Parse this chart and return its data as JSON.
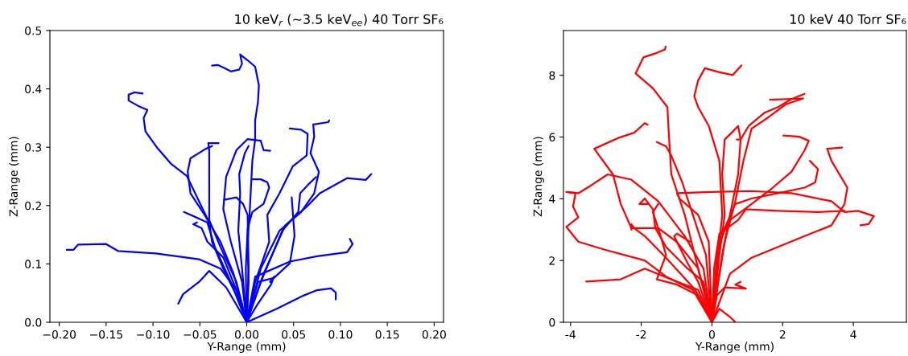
{
  "chart_data": [
    {
      "type": "line",
      "title": "10 keV$_{r}$ (~3.5 keV$_{ee}$) 40 Torr SF₆",
      "xlabel": "Y-Range (mm)",
      "ylabel": "Z-Range (mm)",
      "xlim": [
        -0.21,
        0.21
      ],
      "ylim": [
        0,
        0.5
      ],
      "xticks": [
        {
          "value": -0.2,
          "label": "−0.20"
        },
        {
          "value": -0.15,
          "label": "−0.15"
        },
        {
          "value": -0.1,
          "label": "−0.10"
        },
        {
          "value": -0.05,
          "label": "−0.05"
        },
        {
          "value": 0,
          "label": "0.00"
        },
        {
          "value": 0.05,
          "label": "0.05"
        },
        {
          "value": 0.1,
          "label": "0.10"
        },
        {
          "value": 0.15,
          "label": "0.15"
        },
        {
          "value": 0.2,
          "label": "0.20"
        }
      ],
      "yticks": [
        {
          "value": 0,
          "label": "0.0"
        },
        {
          "value": 0.1,
          "label": "0.1"
        },
        {
          "value": 0.2,
          "label": "0.2"
        },
        {
          "value": 0.3,
          "label": "0.3"
        },
        {
          "value": 0.4,
          "label": "0.4"
        },
        {
          "value": 0.5,
          "label": "0.5"
        }
      ],
      "series": [
        {
          "color": "#0000ff",
          "x": [
            0,
            0.002,
            0.001,
            0.003,
            0.006,
            0.009,
            0.009,
            0.012,
            0.013,
            0.009,
            0.001,
            -0.007,
            -0.005,
            -0.008,
            -0.017,
            -0.024,
            -0.031,
            -0.037
          ],
          "values": [
            0,
            0.069,
            0.138,
            0.184,
            0.277,
            0.313,
            0.346,
            0.378,
            0.406,
            0.438,
            0.449,
            0.459,
            0.443,
            0.433,
            0.43,
            0.436,
            0.441,
            0.44
          ]
        },
        {
          "color": "#0000ff",
          "x": [
            0,
            -0.011,
            -0.025,
            -0.037,
            -0.04,
            -0.064,
            -0.081,
            -0.096,
            -0.108,
            -0.11,
            -0.106,
            -0.116,
            -0.126,
            -0.126,
            -0.12,
            -0.111
          ],
          "values": [
            0,
            0.046,
            0.092,
            0.138,
            0.171,
            0.251,
            0.272,
            0.3,
            0.327,
            0.35,
            0.364,
            0.371,
            0.38,
            0.39,
            0.394,
            0.392
          ]
        },
        {
          "color": "#0000ff",
          "x": [
            0,
            -0.011,
            -0.028,
            -0.051,
            -0.097,
            -0.137,
            -0.15,
            -0.18,
            -0.185,
            -0.192
          ],
          "values": [
            0,
            0.055,
            0.092,
            0.108,
            0.118,
            0.122,
            0.134,
            0.133,
            0.124,
            0.124
          ]
        },
        {
          "color": "#0000ff",
          "x": [
            0,
            -0.022,
            -0.04,
            -0.051,
            -0.068,
            -0.073
          ],
          "values": [
            0,
            0.06,
            0.088,
            0.069,
            0.048,
            0.032
          ]
        },
        {
          "color": "#0000ff",
          "x": [
            0,
            -0.011,
            -0.028,
            -0.04,
            -0.04,
            -0.04,
            -0.041,
            -0.03
          ],
          "values": [
            0,
            0.069,
            0.129,
            0.175,
            0.24,
            0.295,
            0.307,
            0.307
          ]
        },
        {
          "color": "#0000ff",
          "x": [
            0,
            -0.014,
            -0.028,
            -0.045,
            -0.06,
            -0.063,
            -0.06,
            -0.044,
            -0.037
          ],
          "values": [
            0,
            0.083,
            0.138,
            0.184,
            0.221,
            0.258,
            0.281,
            0.297,
            0.302
          ]
        },
        {
          "color": "#0000ff",
          "x": [
            0,
            -0.017,
            -0.034,
            -0.042,
            -0.057,
            -0.067
          ],
          "values": [
            0,
            0.069,
            0.129,
            0.171,
            0.182,
            0.189
          ]
        },
        {
          "color": "#0000ff",
          "x": [
            0,
            -0.011,
            -0.025,
            -0.042,
            -0.048,
            -0.057,
            -0.053
          ],
          "values": [
            0,
            0.055,
            0.111,
            0.138,
            0.161,
            0.168,
            0.171
          ]
        },
        {
          "color": "#0000ff",
          "x": [
            0,
            -0.005,
            -0.017,
            -0.025,
            -0.022,
            -0.011,
            0.001,
            0.015,
            0.018,
            0.025
          ],
          "values": [
            0,
            0.069,
            0.138,
            0.194,
            0.249,
            0.295,
            0.314,
            0.311,
            0.295,
            0.294
          ]
        },
        {
          "color": "#0000ff",
          "x": [
            0,
            -0.005,
            -0.009,
            -0.007,
            -0.008,
            -0.002,
            0.002
          ],
          "values": [
            0,
            0.092,
            0.157,
            0.221,
            0.254,
            0.29,
            0.302
          ]
        },
        {
          "color": "#0000ff",
          "x": [
            0,
            -0.001,
            0.001,
            0.006,
            0.018,
            0.024,
            0.022,
            0.015,
            0.006
          ],
          "values": [
            0,
            0.092,
            0.161,
            0.189,
            0.203,
            0.231,
            0.24,
            0.245,
            0.245
          ]
        },
        {
          "color": "#0000ff",
          "x": [
            0,
            0.009,
            0.024,
            0.022,
            0.035,
            0.049,
            0.064,
            0.065,
            0.058,
            0.046
          ],
          "values": [
            0,
            0.069,
            0.138,
            0.184,
            0.221,
            0.267,
            0.286,
            0.323,
            0.33,
            0.332
          ]
        },
        {
          "color": "#0000ff",
          "x": [
            0,
            0.015,
            0.035,
            0.058,
            0.072,
            0.077,
            0.068,
            0.072,
            0.071,
            0.087,
            0.088
          ],
          "values": [
            0,
            0.092,
            0.157,
            0.189,
            0.221,
            0.258,
            0.29,
            0.318,
            0.339,
            0.343,
            0.346
          ]
        },
        {
          "color": "#0000ff",
          "x": [
            0,
            0.018,
            0.041,
            0.064,
            0.078,
            0.107,
            0.127,
            0.133
          ],
          "values": [
            0,
            0.083,
            0.166,
            0.198,
            0.221,
            0.247,
            0.244,
            0.254
          ]
        },
        {
          "color": "#0000ff",
          "x": [
            0,
            0.015,
            0.038,
            0.055,
            0.057,
            0.065,
            0.074
          ],
          "values": [
            0,
            0.069,
            0.157,
            0.189,
            0.221,
            0.235,
            0.249
          ]
        },
        {
          "color": "#0000ff",
          "x": [
            0,
            0.012,
            0.029,
            0.046,
            0.051,
            0.048
          ],
          "values": [
            0,
            0.069,
            0.076,
            0.101,
            0.148,
            0.214
          ]
        },
        {
          "color": "#0000ff",
          "x": [
            0,
            0.009,
            0.046,
            0.075,
            0.107,
            0.113,
            0.11
          ],
          "values": [
            0,
            0.078,
            0.104,
            0.113,
            0.12,
            0.134,
            0.143
          ]
        },
        {
          "color": "#0000ff",
          "x": [
            0,
            0.032,
            0.061,
            0.075,
            0.09,
            0.095,
            0.095
          ],
          "values": [
            0,
            0.023,
            0.046,
            0.055,
            0.058,
            0.051,
            0.039
          ]
        },
        {
          "color": "#0000ff",
          "x": [
            0,
            0.012,
            0.026,
            0.029,
            0.025
          ],
          "values": [
            0,
            0.032,
            0.065,
            0.078,
            0.069
          ]
        },
        {
          "color": "#0000ff",
          "x": [
            0,
            0.002,
            0.001,
            -0.004,
            -0.011,
            -0.024
          ],
          "values": [
            0,
            0.092,
            0.184,
            0.203,
            0.214,
            0.21
          ]
        }
      ]
    },
    {
      "type": "line",
      "title": "10 keV 40 Torr SF₆",
      "xlabel": "Y-Range (mm)",
      "ylabel": "Z-Range (mm)",
      "xlim": [
        -4.2,
        5.5
      ],
      "ylim": [
        0,
        9.45
      ],
      "xticks": [
        -4,
        -2,
        0,
        2,
        4
      ],
      "yticks": [
        0,
        2,
        4,
        6,
        8
      ],
      "series": [
        {
          "color": "#ff0000",
          "x": [
            0,
            -0.39,
            -0.77,
            -1.15,
            -1.22,
            -1.26,
            -1.67,
            -2.16,
            -1.94,
            -1.6,
            -1.33,
            -1.31
          ],
          "values": [
            0,
            1.74,
            3.48,
            4.79,
            6.1,
            6.97,
            7.58,
            8.06,
            8.58,
            8.71,
            8.84,
            8.93
          ]
        },
        {
          "color": "#ff0000",
          "x": [
            0,
            0.14,
            0.29,
            0.21,
            -0.09,
            -0.39,
            -0.5,
            -0.39,
            -0.2,
            0.21,
            0.59,
            0.83
          ],
          "values": [
            0,
            1.74,
            3.48,
            5.23,
            6.36,
            6.97,
            7.32,
            7.84,
            8.23,
            8.1,
            8.01,
            8.32
          ]
        },
        {
          "color": "#ff0000",
          "x": [
            0,
            0.29,
            0.51,
            0.74,
            0.81,
            1.04,
            1.49,
            1.87,
            2.25,
            2.62
          ],
          "values": [
            0,
            2.18,
            3.48,
            4.79,
            5.92,
            6.36,
            6.79,
            6.97,
            7.23,
            7.4
          ]
        },
        {
          "color": "#ff0000",
          "x": [
            0,
            0.36,
            0.66,
            0.89,
            1.12,
            1.57,
            2.09,
            2.58,
            1.64
          ],
          "values": [
            0,
            2.61,
            3.92,
            5.23,
            6.27,
            6.62,
            7.06,
            7.25,
            7.21
          ]
        },
        {
          "color": "#ff0000",
          "x": [
            0,
            0.51,
            1.12,
            1.87,
            2.62,
            3.38,
            3.75,
            3.83,
            3.38,
            3.26,
            3.68
          ],
          "values": [
            0,
            1.57,
            2.09,
            2.44,
            2.79,
            3.14,
            3.83,
            4.36,
            5.23,
            5.62,
            5.66
          ]
        },
        {
          "color": "#ff0000",
          "x": [
            0,
            0.14,
            0.36,
            0.66,
            1.12,
            1.87,
            2.62,
            2.92,
            3.0,
            2.77
          ],
          "values": [
            0,
            2.18,
            3.05,
            3.83,
            4.01,
            4.18,
            4.36,
            4.53,
            4.96,
            5.23
          ]
        },
        {
          "color": "#ff0000",
          "x": [
            0,
            -0.09,
            -0.39,
            -0.92,
            -0.99,
            -0.02,
            1.12,
            2.25,
            3.38,
            3.75,
            4.13,
            4.58,
            4.43,
            4.2
          ],
          "values": [
            0,
            2.61,
            3.48,
            4.01,
            4.18,
            4.22,
            4.25,
            4.18,
            3.92,
            3.57,
            3.61,
            3.44,
            3.18,
            3.14
          ]
        },
        {
          "color": "#ff0000",
          "x": [
            0,
            0.21,
            0.51,
            1.12,
            1.72,
            2.25,
            2.62,
            2.74,
            2.47,
            2.02
          ],
          "values": [
            0,
            2.61,
            3.31,
            3.83,
            4.36,
            4.88,
            5.57,
            5.88,
            6.01,
            6.05
          ]
        },
        {
          "color": "#ff0000",
          "x": [
            0,
            -0.39,
            -1.0,
            -1.52,
            -2.28,
            -2.58,
            -2.8,
            -3.33,
            -2.65,
            -2.2,
            -1.9,
            -1.82
          ],
          "values": [
            0,
            1.74,
            2.61,
            3.05,
            3.05,
            3.83,
            4.79,
            5.62,
            5.97,
            6.14,
            6.45,
            6.4
          ]
        },
        {
          "color": "#ff0000",
          "x": [
            0,
            -0.54,
            -1.3,
            -1.9,
            -3.03,
            -3.78,
            -4.12,
            -3.78,
            -3.93,
            -3.86,
            -4.12
          ],
          "values": [
            0,
            1.05,
            1.48,
            2.0,
            2.35,
            2.61,
            3.09,
            3.4,
            3.75,
            4.18,
            4.22
          ]
        },
        {
          "color": "#ff0000",
          "x": [
            0,
            -0.39,
            -1.15,
            -1.9,
            -2.58,
            -3.56
          ],
          "values": [
            0,
            1.05,
            1.39,
            1.74,
            1.39,
            1.32
          ]
        },
        {
          "color": "#ff0000",
          "x": [
            0,
            -0.24,
            -0.77,
            -1.52,
            -2.28,
            -2.95,
            -3.41,
            -3.78,
            -4.08
          ],
          "values": [
            0,
            1.74,
            2.79,
            3.92,
            4.62,
            4.79,
            4.44,
            4.18,
            4.22
          ]
        },
        {
          "color": "#ff0000",
          "x": [
            0,
            -0.24,
            -0.69,
            -1.3,
            -1.6,
            -1.67,
            -1.9,
            -2.05,
            -1.82
          ],
          "values": [
            0,
            1.31,
            1.74,
            2.44,
            3.05,
            3.66,
            4.01,
            3.83,
            3.83
          ]
        },
        {
          "color": "#ff0000",
          "x": [
            0,
            -0.17,
            -0.54,
            -0.84,
            -1.15,
            -1.3,
            -1.56
          ],
          "values": [
            0,
            2.18,
            3.48,
            4.53,
            5.4,
            5.7,
            5.84
          ]
        },
        {
          "color": "#ff0000",
          "x": [
            0,
            -0.39,
            -0.99,
            -1.56,
            -1.3,
            -1.45,
            -1.67,
            -1.52
          ],
          "values": [
            0,
            0.87,
            1.22,
            1.39,
            2.18,
            2.79,
            3.57,
            3.83
          ]
        },
        {
          "color": "#ff0000",
          "x": [
            0,
            -0.47,
            -1.3,
            -1.9,
            -2.2,
            -2.28,
            -2.28
          ],
          "values": [
            0,
            1.05,
            2.09,
            2.79,
            3.05,
            3.18,
            3.0
          ]
        },
        {
          "color": "#ff0000",
          "x": [
            0,
            0.14,
            0.36,
            0.96,
            0.66,
            0.81
          ],
          "values": [
            0,
            0.87,
            1.13,
            1.09,
            1.22,
            1.31
          ]
        },
        {
          "color": "#ff0000",
          "x": [
            0,
            0.21,
            0.36,
            0.51,
            0.65
          ],
          "values": [
            0,
            0.44,
            0.3,
            0.17,
            0.02
          ]
        },
        {
          "color": "#ff0000",
          "x": [
            0,
            0.21,
            0.36,
            0.29,
            0.36,
            0.59,
            0.74,
            0.81,
            0.7
          ],
          "values": [
            0,
            2.18,
            3.48,
            4.79,
            5.92,
            6.18,
            6.36,
            5.92,
            5.92
          ]
        },
        {
          "color": "#ff0000",
          "x": [
            0,
            0.06,
            0.21,
            0.74,
            0.96,
            1.87,
            3.0,
            3.75
          ],
          "values": [
            0,
            1.74,
            2.87,
            3.31,
            3.66,
            3.61,
            3.57,
            3.61
          ]
        },
        {
          "color": "#ff0000",
          "x": [
            0,
            -0.39,
            -0.69,
            -0.92,
            -1.07,
            -0.99,
            -0.62
          ],
          "values": [
            0,
            1.31,
            1.92,
            2.44,
            2.79,
            2.87,
            2.61
          ]
        }
      ]
    }
  ]
}
